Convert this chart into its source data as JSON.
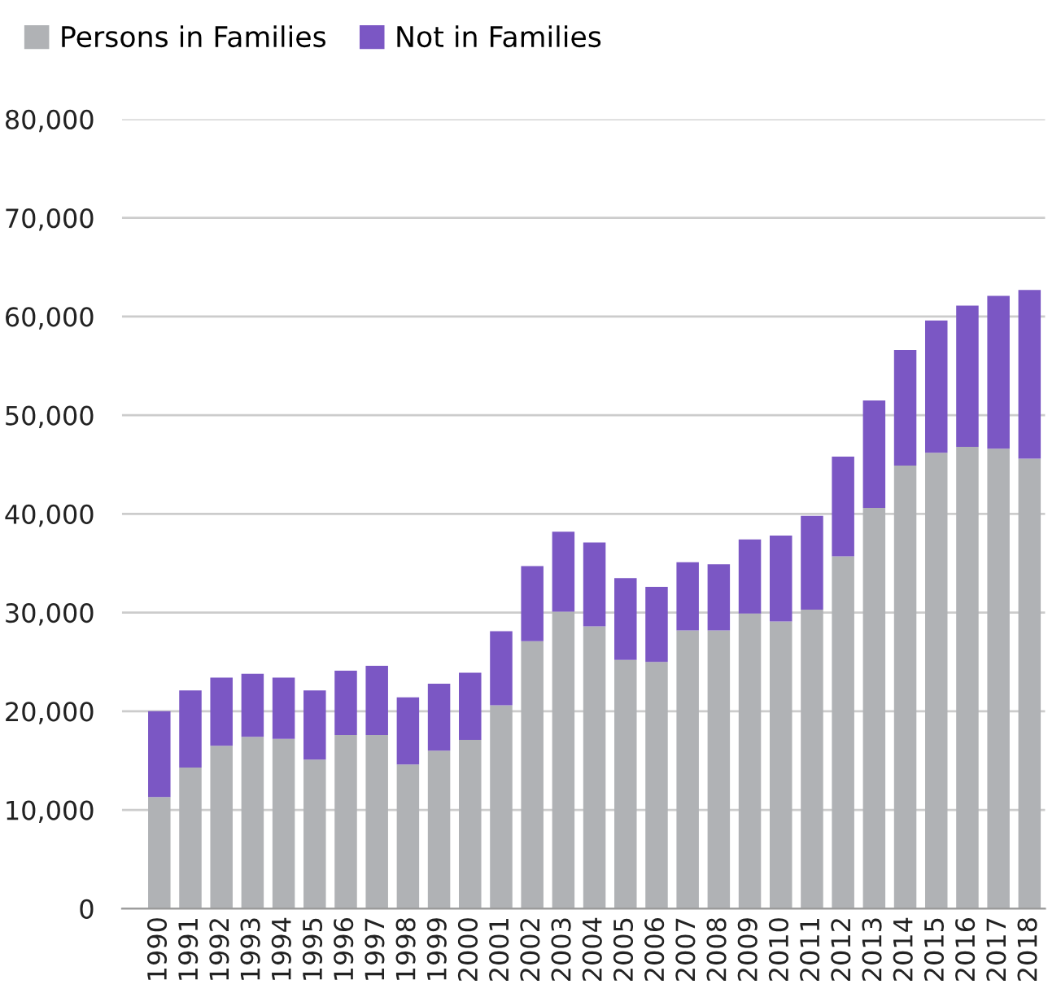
{
  "chart_data": {
    "type": "bar",
    "stacked": true,
    "legend": "top left",
    "grid": "y",
    "categories": [
      "1990",
      "1991",
      "1992",
      "1993",
      "1994",
      "1995",
      "1996",
      "1997",
      "1998",
      "1999",
      "2000",
      "2001",
      "2002",
      "2003",
      "2004",
      "2005",
      "2006",
      "2007",
      "2008",
      "2009",
      "2010",
      "2011",
      "2012",
      "2013",
      "2014",
      "2015",
      "2016",
      "2017",
      "2018"
    ],
    "series": [
      {
        "name": "Persons in Families",
        "color": "#b0b2b5",
        "values": [
          11300,
          14300,
          16500,
          17400,
          17200,
          15100,
          17600,
          17600,
          14600,
          16000,
          17100,
          20600,
          27100,
          30100,
          28600,
          25200,
          25000,
          28200,
          28200,
          29900,
          29100,
          30300,
          35700,
          40600,
          44900,
          46200,
          46800,
          46600,
          45600
        ]
      },
      {
        "name": "Not in Families",
        "color": "#7b57c4",
        "values": [
          8700,
          7800,
          6900,
          6400,
          6200,
          7000,
          6500,
          7000,
          6800,
          6800,
          6800,
          7500,
          7600,
          8100,
          8500,
          8300,
          7600,
          6900,
          6700,
          7500,
          8700,
          9500,
          10100,
          10900,
          11700,
          13400,
          14300,
          15500,
          17100
        ]
      }
    ],
    "ylim": [
      0,
      80000
    ],
    "yticks": [
      0,
      {
        "value": 10000,
        "label": "10,000"
      },
      {
        "value": 20000,
        "label": "20,000"
      },
      {
        "value": 30000,
        "label": "30,000"
      },
      {
        "value": 40000,
        "label": "40,000"
      },
      {
        "value": 50000,
        "label": "50,000"
      },
      {
        "value": 60000,
        "label": "60,000"
      },
      {
        "value": 70000,
        "label": "70,000"
      },
      {
        "value": 80000,
        "label": "80,000"
      }
    ]
  }
}
